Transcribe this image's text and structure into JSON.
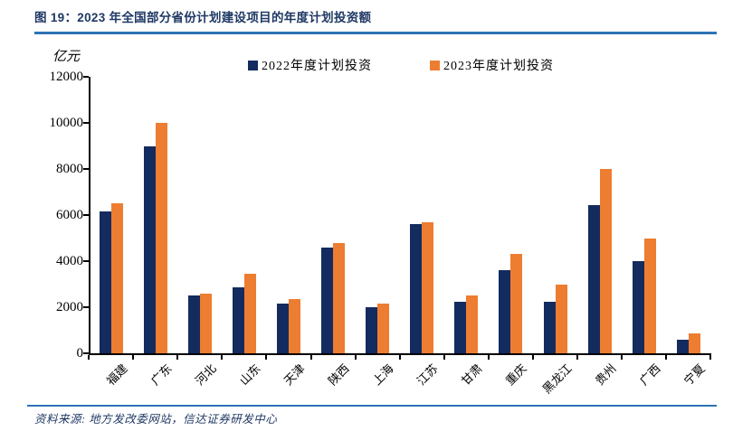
{
  "header": {
    "title": "图 19：2023 年全国部分省份计划建设项目的年度计划投资额"
  },
  "footer": {
    "source": "资料来源: 地方发改委网站，信达证券研发中心"
  },
  "colors": {
    "accent_rule": "#2e74b5",
    "title_text": "#1f3864",
    "series_2022": "#132b5f",
    "series_2023": "#ed7d31"
  },
  "chart_data": {
    "type": "bar",
    "title": "",
    "unit_label": "亿元",
    "xlabel": "",
    "ylabel": "亿元",
    "ylim": [
      0,
      12000
    ],
    "yticks": [
      0,
      2000,
      4000,
      6000,
      8000,
      10000,
      12000
    ],
    "grid": false,
    "legend_position": "top-center",
    "categories": [
      "福建",
      "广东",
      "河北",
      "山东",
      "天津",
      "陕西",
      "上海",
      "江苏",
      "甘肃",
      "重庆",
      "黑龙江",
      "贵州",
      "广西",
      "宁夏"
    ],
    "series": [
      {
        "name": "2022年度计划投资",
        "color": "#132b5f",
        "values": [
          6150,
          9000,
          2500,
          2850,
          2150,
          4600,
          2000,
          5600,
          2250,
          3600,
          2250,
          6450,
          4000,
          600
        ]
      },
      {
        "name": "2023年度计划投资",
        "color": "#ed7d31",
        "values": [
          6500,
          10000,
          2600,
          3450,
          2350,
          4800,
          2150,
          5700,
          2500,
          4300,
          3000,
          8000,
          5000,
          850
        ]
      }
    ]
  }
}
